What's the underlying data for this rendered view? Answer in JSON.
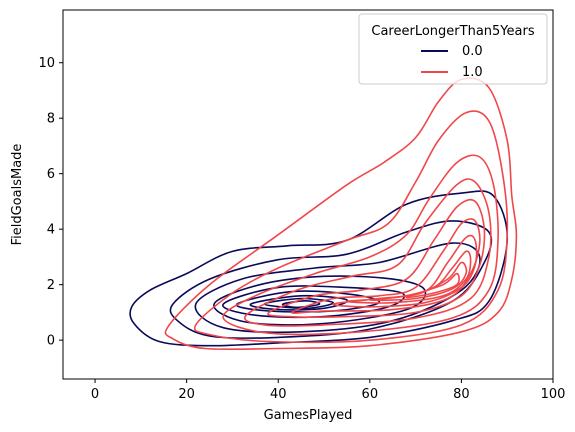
{
  "chart_data": {
    "type": "kde-contour",
    "title": "",
    "xlabel": "GamesPlayed",
    "ylabel": "FieldGoalsMade",
    "xlim": [
      -7,
      100
    ],
    "ylim": [
      -1.4,
      11.9
    ],
    "xticks": [
      0,
      20,
      40,
      60,
      80,
      100
    ],
    "yticks": [
      0,
      2,
      4,
      6,
      8,
      10
    ],
    "grid": false,
    "legend": {
      "title": "CareerLongerThan5Years",
      "placement": "top-right",
      "entries": [
        {
          "label": "0.0",
          "color": "#0a0a5a"
        },
        {
          "label": "1.0",
          "color": "#f0474a"
        }
      ]
    },
    "series": [
      {
        "name": "0.0",
        "color": "#0a0a5a",
        "contours": [
          [
            [
              8,
              1.2
            ],
            [
              12,
              1.8
            ],
            [
              20,
              2.4
            ],
            [
              30,
              3.2
            ],
            [
              42,
              3.4
            ],
            [
              55,
              3.6
            ],
            [
              68,
              4.9
            ],
            [
              80,
              5.3
            ],
            [
              87,
              5.2
            ],
            [
              90,
              3.6
            ],
            [
              86,
              1.4
            ],
            [
              78,
              0.7
            ],
            [
              60,
              0.1
            ],
            [
              40,
              -0.1
            ],
            [
              25,
              -0.2
            ],
            [
              14,
              -0.05
            ],
            [
              8.5,
              0.6
            ]
          ],
          [
            [
              17,
              1.3
            ],
            [
              25,
              2.2
            ],
            [
              40,
              2.9
            ],
            [
              55,
              3.1
            ],
            [
              68,
              3.9
            ],
            [
              78,
              4.3
            ],
            [
              86,
              3.9
            ],
            [
              85,
              2.8
            ],
            [
              78,
              1.4
            ],
            [
              60,
              0.4
            ],
            [
              40,
              0.1
            ],
            [
              25,
              0.15
            ],
            [
              18,
              0.7
            ]
          ],
          [
            [
              22,
              1.3
            ],
            [
              32,
              2.2
            ],
            [
              48,
              2.6
            ],
            [
              62,
              2.8
            ],
            [
              78,
              3.5
            ],
            [
              84,
              3.0
            ],
            [
              80,
              1.8
            ],
            [
              65,
              0.7
            ],
            [
              45,
              0.3
            ],
            [
              28,
              0.45
            ]
          ],
          [
            [
              26,
              1.3
            ],
            [
              36,
              2.0
            ],
            [
              50,
              2.3
            ],
            [
              65,
              2.2
            ],
            [
              72,
              1.8
            ],
            [
              68,
              1.1
            ],
            [
              50,
              0.6
            ],
            [
              33,
              0.65
            ]
          ],
          [
            [
              28,
              1.3
            ],
            [
              40,
              1.9
            ],
            [
              55,
              1.9
            ],
            [
              67,
              1.7
            ],
            [
              64,
              1.2
            ],
            [
              50,
              0.85
            ],
            [
              35,
              0.9
            ]
          ],
          [
            [
              31,
              1.3
            ],
            [
              43,
              1.75
            ],
            [
              56,
              1.65
            ],
            [
              62,
              1.35
            ],
            [
              52,
              1.05
            ],
            [
              38,
              1.05
            ]
          ],
          [
            [
              34,
              1.3
            ],
            [
              45,
              1.6
            ],
            [
              55,
              1.45
            ],
            [
              50,
              1.15
            ],
            [
              40,
              1.1
            ]
          ],
          [
            [
              37,
              1.3
            ],
            [
              45,
              1.5
            ],
            [
              52,
              1.35
            ],
            [
              46,
              1.15
            ]
          ],
          [
            [
              41,
              1.3
            ],
            [
              46,
              1.42
            ],
            [
              49,
              1.3
            ],
            [
              44,
              1.18
            ]
          ]
        ]
      },
      {
        "name": "1.0",
        "color": "#f0474a",
        "contours": [
          [
            [
              16,
              0.5
            ],
            [
              25,
              2.0
            ],
            [
              40,
              3.8
            ],
            [
              55,
              5.6
            ],
            [
              63,
              6.4
            ],
            [
              70,
              7.3
            ],
            [
              75,
              8.6
            ],
            [
              80,
              9.4
            ],
            [
              86,
              9.1
            ],
            [
              90,
              7.2
            ],
            [
              91,
              5.2
            ],
            [
              92,
              3.8
            ],
            [
              91,
              2.2
            ],
            [
              88,
              1.0
            ],
            [
              80,
              0.3
            ],
            [
              60,
              -0.2
            ],
            [
              40,
              -0.3
            ],
            [
              24,
              -0.3
            ],
            [
              17,
              0.05
            ]
          ],
          [
            [
              22,
              0.55
            ],
            [
              30,
              1.7
            ],
            [
              40,
              2.6
            ],
            [
              55,
              3.6
            ],
            [
              64,
              4.2
            ],
            [
              70,
              5.7
            ],
            [
              75,
              7.2
            ],
            [
              81,
              8.2
            ],
            [
              86,
              7.9
            ],
            [
              89,
              6.0
            ],
            [
              90,
              3.8
            ],
            [
              88,
              1.8
            ],
            [
              80,
              0.55
            ],
            [
              60,
              0.0
            ],
            [
              38,
              -0.05
            ],
            [
              25,
              0.2
            ]
          ],
          [
            [
              28,
              0.8
            ],
            [
              35,
              1.6
            ],
            [
              48,
              2.4
            ],
            [
              60,
              3.0
            ],
            [
              68,
              3.8
            ],
            [
              73,
              5.1
            ],
            [
              79,
              6.4
            ],
            [
              84,
              6.6
            ],
            [
              87,
              5.6
            ],
            [
              88,
              3.6
            ],
            [
              86,
              1.8
            ],
            [
              78,
              0.8
            ],
            [
              58,
              0.3
            ],
            [
              38,
              0.25
            ]
          ],
          [
            [
              33,
              0.9
            ],
            [
              44,
              1.8
            ],
            [
              56,
              2.3
            ],
            [
              66,
              2.7
            ],
            [
              72,
              4.2
            ],
            [
              79,
              5.6
            ],
            [
              83,
              5.7
            ],
            [
              86,
              4.6
            ],
            [
              86,
              3.0
            ],
            [
              82,
              1.5
            ],
            [
              70,
              0.8
            ],
            [
              50,
              0.55
            ],
            [
              37,
              0.55
            ]
          ],
          [
            [
              38,
              1.0
            ],
            [
              48,
              1.6
            ],
            [
              58,
              1.8
            ],
            [
              68,
              2.2
            ],
            [
              74,
              3.6
            ],
            [
              79,
              4.8
            ],
            [
              83,
              5.0
            ],
            [
              85,
              4.0
            ],
            [
              84,
              2.7
            ],
            [
              80,
              1.6
            ],
            [
              70,
              1.0
            ],
            [
              55,
              0.85
            ],
            [
              42,
              0.85
            ]
          ],
          [
            [
              43,
              1.0
            ],
            [
              52,
              1.5
            ],
            [
              62,
              1.6
            ],
            [
              70,
              1.9
            ],
            [
              76,
              3.2
            ],
            [
              80,
              4.2
            ],
            [
              83,
              4.3
            ],
            [
              84,
              3.5
            ],
            [
              82,
              2.4
            ],
            [
              77,
              1.5
            ],
            [
              65,
              1.1
            ],
            [
              50,
              1.05
            ]
          ],
          [
            [
              52,
              1.3
            ],
            [
              62,
              1.5
            ],
            [
              72,
              1.75
            ],
            [
              77,
              2.8
            ],
            [
              81,
              3.7
            ],
            [
              83,
              3.6
            ],
            [
              83,
              2.7
            ],
            [
              80,
              1.9
            ],
            [
              72,
              1.35
            ],
            [
              60,
              1.2
            ]
          ],
          [
            [
              55,
              1.4
            ],
            [
              66,
              1.55
            ],
            [
              74,
              1.9
            ],
            [
              78,
              2.6
            ],
            [
              81,
              3.2
            ],
            [
              82,
              2.9
            ],
            [
              81,
              2.2
            ],
            [
              76,
              1.6
            ],
            [
              65,
              1.35
            ]
          ],
          [
            [
              60,
              1.45
            ],
            [
              70,
              1.65
            ],
            [
              77,
              2.2
            ],
            [
              80,
              2.8
            ],
            [
              81,
              2.4
            ],
            [
              78,
              1.85
            ],
            [
              70,
              1.5
            ]
          ],
          [
            [
              68,
              1.55
            ],
            [
              76,
              2.0
            ],
            [
              79,
              2.4
            ],
            [
              79,
              2.0
            ],
            [
              74,
              1.7
            ]
          ]
        ]
      }
    ]
  }
}
